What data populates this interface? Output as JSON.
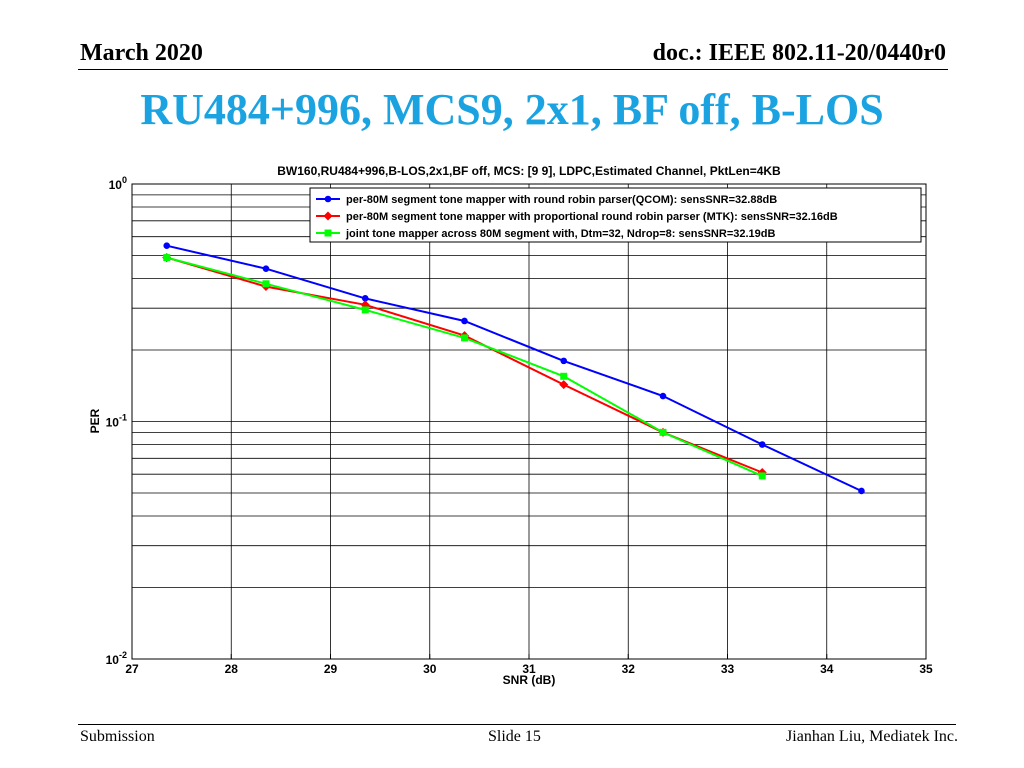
{
  "header": {
    "date": "March 2020",
    "doc": "doc.: IEEE 802.11-20/0440r0"
  },
  "slide_title": "RU484+996, MCS9, 2x1, BF off, B-LOS",
  "footer": {
    "left": "Submission",
    "center": "Slide 15",
    "right": "Jianhan Liu, Mediatek Inc."
  },
  "chart_data": {
    "type": "line",
    "title": "BW160,RU484+996,B-LOS,2x1,BF off, MCS: [9  9], LDPC,Estimated Channel, PktLen=4KB",
    "xlabel": "SNR (dB)",
    "ylabel": "PER",
    "xlim": [
      27,
      35
    ],
    "ylim": [
      0.01,
      1
    ],
    "yscale": "log",
    "xticks": [
      27,
      28,
      29,
      30,
      31,
      32,
      33,
      34,
      35
    ],
    "yticks": [
      {
        "value": 1,
        "base": "10",
        "exp": "0"
      },
      {
        "value": 0.1,
        "base": "10",
        "exp": "-1"
      },
      {
        "value": 0.01,
        "base": "10",
        "exp": "-2"
      }
    ],
    "grid": true,
    "legend_position": "top-right",
    "series": [
      {
        "name": "per-80M segment tone mapper with round robin parser(QCOM):   sensSNR=32.88dB",
        "color": "#0000ff",
        "marker": "circle",
        "x": [
          27.35,
          28.35,
          29.35,
          30.35,
          31.35,
          32.35,
          33.35,
          34.35
        ],
        "y": [
          0.55,
          0.44,
          0.33,
          0.265,
          0.18,
          0.128,
          0.08,
          0.051
        ]
      },
      {
        "name": "per-80M segment tone mapper with proportional round robin parser (MTK):   sensSNR=32.16dB",
        "color": "#ff0000",
        "marker": "diamond",
        "x": [
          27.35,
          28.35,
          29.35,
          30.35,
          31.35,
          32.35,
          33.35
        ],
        "y": [
          0.49,
          0.37,
          0.31,
          0.23,
          0.143,
          0.09,
          0.061
        ]
      },
      {
        "name": "joint tone mapper across 80M segment with, Dtm=32, Ndrop=8:   sensSNR=32.19dB",
        "color": "#00ff00",
        "marker": "square",
        "x": [
          27.35,
          28.35,
          29.35,
          30.35,
          31.35,
          32.35,
          33.35
        ],
        "y": [
          0.49,
          0.38,
          0.295,
          0.225,
          0.155,
          0.09,
          0.059
        ]
      }
    ]
  }
}
